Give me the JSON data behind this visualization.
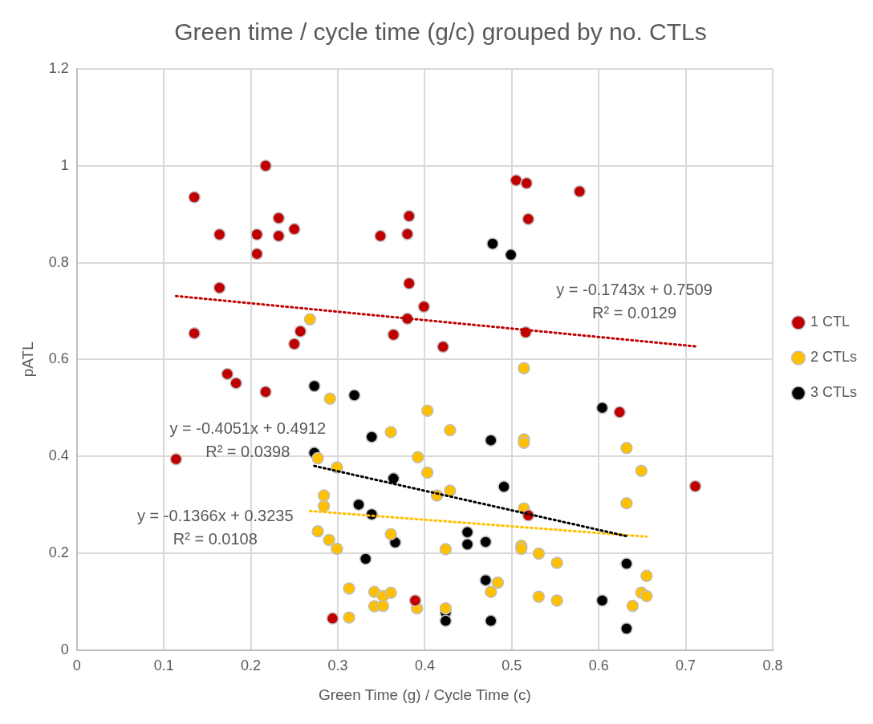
{
  "chart_data": {
    "type": "scatter",
    "title": "Green time / cycle time (g/c) grouped by no. CTLs",
    "xlabel": "Green Time (g) / Cycle Time (c)",
    "ylabel": "pATL",
    "xlim": [
      0,
      0.8
    ],
    "xticks": [
      0,
      0.1,
      0.2,
      0.3,
      0.4,
      0.5,
      0.6,
      0.7,
      0.8
    ],
    "ylim": [
      0,
      1.2
    ],
    "yticks": [
      0,
      0.2,
      0.4,
      0.6,
      0.8,
      1,
      1.2
    ],
    "grid": true,
    "legend": "right",
    "marker": "circle",
    "series": [
      {
        "name": "1 CTL",
        "color": "#c00000",
        "x": [
          0.135,
          0.164,
          0.207,
          0.217,
          0.232,
          0.232,
          0.25,
          0.207,
          0.164,
          0.135,
          0.257,
          0.25,
          0.173,
          0.183,
          0.217,
          0.114,
          0.294,
          0.505,
          0.517,
          0.578,
          0.519,
          0.382,
          0.349,
          0.38,
          0.382,
          0.399,
          0.38,
          0.364,
          0.421,
          0.516,
          0.624,
          0.711,
          0.519,
          0.389
        ],
        "values": [
          0.935,
          0.858,
          0.858,
          1.0,
          0.892,
          0.855,
          0.869,
          0.818,
          0.748,
          0.654,
          0.658,
          0.632,
          0.57,
          0.551,
          0.533,
          0.394,
          0.065,
          0.97,
          0.964,
          0.947,
          0.89,
          0.896,
          0.855,
          0.859,
          0.757,
          0.709,
          0.684,
          0.651,
          0.626,
          0.656,
          0.491,
          0.338,
          0.278,
          0.102
        ]
      },
      {
        "name": "2 CTLs",
        "color": "#ffc000",
        "x": [
          0.268,
          0.291,
          0.403,
          0.361,
          0.429,
          0.514,
          0.514,
          0.514,
          0.632,
          0.649,
          0.392,
          0.403,
          0.429,
          0.414,
          0.514,
          0.632,
          0.361,
          0.424,
          0.511,
          0.511,
          0.531,
          0.552,
          0.655,
          0.313,
          0.342,
          0.352,
          0.361,
          0.342,
          0.352,
          0.391,
          0.424,
          0.313,
          0.476,
          0.484,
          0.531,
          0.552,
          0.649,
          0.655,
          0.639,
          0.277,
          0.299,
          0.284,
          0.284,
          0.277,
          0.29,
          0.299
        ],
        "values": [
          0.683,
          0.519,
          0.494,
          0.45,
          0.454,
          0.435,
          0.428,
          0.582,
          0.417,
          0.37,
          0.398,
          0.366,
          0.329,
          0.319,
          0.292,
          0.303,
          0.239,
          0.208,
          0.215,
          0.209,
          0.199,
          0.18,
          0.153,
          0.127,
          0.12,
          0.111,
          0.118,
          0.09,
          0.091,
          0.086,
          0.086,
          0.067,
          0.12,
          0.139,
          0.11,
          0.102,
          0.118,
          0.111,
          0.091,
          0.396,
          0.377,
          0.319,
          0.297,
          0.245,
          0.227,
          0.209
        ]
      },
      {
        "name": "3 CTLs",
        "color": "#000000",
        "x": [
          0.478,
          0.499,
          0.273,
          0.319,
          0.604,
          0.339,
          0.476,
          0.273,
          0.364,
          0.491,
          0.324,
          0.339,
          0.366,
          0.449,
          0.449,
          0.47,
          0.332,
          0.632,
          0.47,
          0.604,
          0.424,
          0.424,
          0.476,
          0.632
        ],
        "values": [
          0.839,
          0.816,
          0.545,
          0.526,
          0.5,
          0.44,
          0.433,
          0.407,
          0.354,
          0.337,
          0.3,
          0.28,
          0.222,
          0.243,
          0.218,
          0.223,
          0.188,
          0.178,
          0.144,
          0.102,
          0.077,
          0.06,
          0.06,
          0.044
        ]
      },
      {
        "type": "line",
        "color": "#c00000",
        "line_style": "dotted",
        "marker": "none",
        "x": [
          0.114,
          0.711
        ],
        "values": [
          0.731,
          0.627
        ]
      },
      {
        "type": "line",
        "color": "#000000",
        "line_style": "dotted",
        "marker": "none",
        "x": [
          0.273,
          0.632
        ],
        "values": [
          0.38,
          0.235
        ]
      },
      {
        "type": "line",
        "color": "#ffc000",
        "line_style": "dotted",
        "marker": "none",
        "x": [
          0.268,
          0.655
        ],
        "values": [
          0.287,
          0.234
        ]
      }
    ],
    "annotations": [
      "y = -0.1743x + 0.7509",
      "R² = 0.0129",
      "y = -0.4051x + 0.4912",
      "R² = 0.0398",
      "y = -0.1366x + 0.3235",
      "R² = 0.0108"
    ]
  }
}
